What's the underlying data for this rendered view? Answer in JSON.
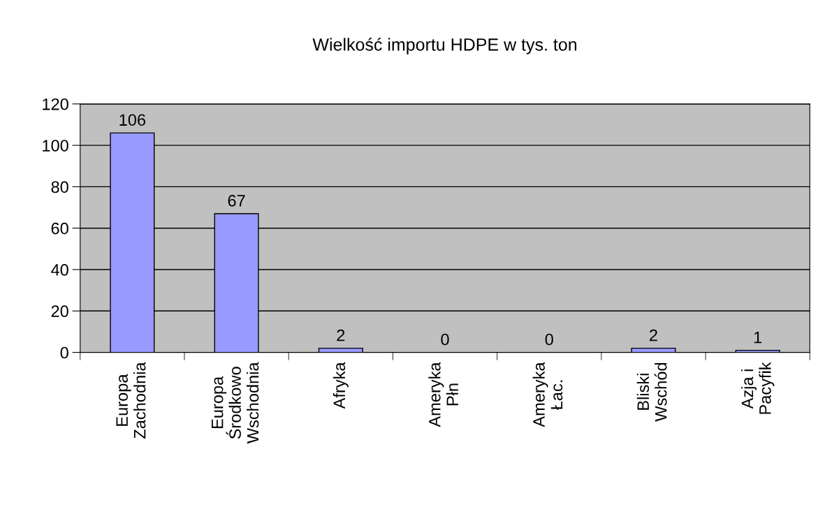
{
  "chart_data": {
    "type": "bar",
    "title": "Wielkość importu HDPE w tys. ton",
    "categories": [
      "Europa\nZachodnia",
      "Europa\nŚrodkowo\nWschodnia",
      "Afryka",
      "Ameryka\nPłn",
      "Ameryka\nŁac.",
      "Bliski\nWschód",
      "Azja i\nPacyfik"
    ],
    "values": [
      106,
      67,
      2,
      0,
      0,
      2,
      1
    ],
    "color": "#9999ff",
    "ylim": [
      0,
      120
    ],
    "yticks": [
      0,
      20,
      40,
      60,
      80,
      100,
      120
    ],
    "grid": "y",
    "data_labels": true
  }
}
